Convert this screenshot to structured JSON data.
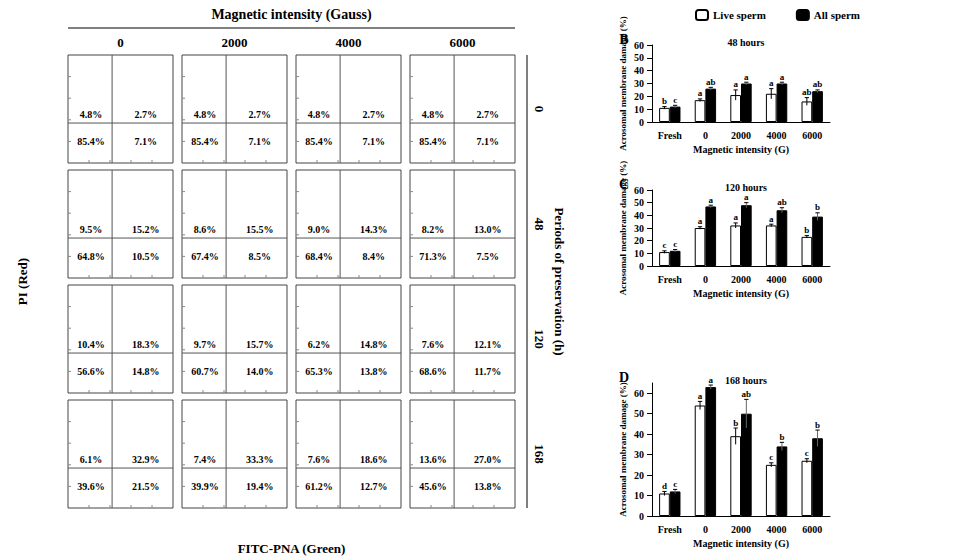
{
  "flow_cytometry": {
    "title": "Magnetic intensity (Gauss)",
    "columns": [
      "0",
      "2000",
      "4000",
      "6000"
    ],
    "row_title": "Periods of preservation (h)",
    "rows": [
      "0",
      "48",
      "120",
      "168"
    ],
    "x_label": "FITC-PNA (Green)",
    "y_label": "PI (Red)",
    "quadrants": [
      [
        {
          "upper_left": "4.8%",
          "upper_right": "2.7%",
          "lower_left": "85.4%",
          "lower_right": "7.1%"
        },
        {
          "upper_left": "4.8%",
          "upper_right": "2.7%",
          "lower_left": "85.4%",
          "lower_right": "7.1%"
        },
        {
          "upper_left": "4.8%",
          "upper_right": "2.7%",
          "lower_left": "85.4%",
          "lower_right": "7.1%"
        },
        {
          "upper_left": "4.8%",
          "upper_right": "2.7%",
          "lower_left": "85.4%",
          "lower_right": "7.1%"
        }
      ],
      [
        {
          "upper_left": "9.5%",
          "upper_right": "15.2%",
          "lower_left": "64.8%",
          "lower_right": "10.5%"
        },
        {
          "upper_left": "8.6%",
          "upper_right": "15.5%",
          "lower_left": "67.4%",
          "lower_right": "8.5%"
        },
        {
          "upper_left": "9.0%",
          "upper_right": "14.3%",
          "lower_left": "68.4%",
          "lower_right": "8.4%"
        },
        {
          "upper_left": "8.2%",
          "upper_right": "13.0%",
          "lower_left": "71.3%",
          "lower_right": "7.5%"
        }
      ],
      [
        {
          "upper_left": "10.4%",
          "upper_right": "18.3%",
          "lower_left": "56.6%",
          "lower_right": "14.8%"
        },
        {
          "upper_left": "9.7%",
          "upper_right": "15.7%",
          "lower_left": "60.7%",
          "lower_right": "14.0%"
        },
        {
          "upper_left": "6.2%",
          "upper_right": "14.8%",
          "lower_left": "65.3%",
          "lower_right": "13.8%"
        },
        {
          "upper_left": "7.6%",
          "upper_right": "12.1%",
          "lower_left": "68.6%",
          "lower_right": "11.7%"
        }
      ],
      [
        {
          "upper_left": "6.1%",
          "upper_right": "32.9%",
          "lower_left": "39.6%",
          "lower_right": "21.5%"
        },
        {
          "upper_left": "7.4%",
          "upper_right": "33.3%",
          "lower_left": "39.9%",
          "lower_right": "19.4%"
        },
        {
          "upper_left": "7.6%",
          "upper_right": "18.6%",
          "lower_left": "61.2%",
          "lower_right": "12.7%"
        },
        {
          "upper_left": "13.6%",
          "upper_right": "27.0%",
          "lower_left": "45.6%",
          "lower_right": "13.8%"
        }
      ]
    ]
  },
  "chart_data": [
    {
      "type": "bar",
      "panel": "B",
      "title": "48 hours",
      "x_label": "Magnetic intensity (G)",
      "y_label": "Acrosomal membrane damage (%)",
      "categories": [
        "Fresh",
        "0",
        "2000",
        "4000",
        "6000"
      ],
      "series": [
        {
          "name": "Live sperm",
          "color": "#ffffff",
          "values": [
            11,
            17,
            21,
            22,
            16
          ],
          "errors": [
            1,
            1,
            4,
            4,
            3
          ],
          "letters": [
            "b",
            "a",
            "a",
            "a",
            "ab"
          ]
        },
        {
          "name": "All sperm",
          "color": "#000000",
          "values": [
            12,
            26,
            30,
            30,
            24
          ],
          "errors": [
            1,
            1,
            1,
            1,
            1
          ],
          "letters": [
            "c",
            "ab",
            "a",
            "a",
            "ab"
          ]
        }
      ],
      "ylim": [
        0,
        60
      ],
      "yticks": [
        0,
        10,
        20,
        30,
        40,
        50,
        60
      ],
      "grid": false,
      "legend": "top"
    },
    {
      "type": "bar",
      "panel": "C",
      "title": "120 hours",
      "x_label": "Magnetic intensity (G)",
      "y_label": "Acrosomal membrane damage (%)",
      "categories": [
        "Fresh",
        "0",
        "2000",
        "4000",
        "6000"
      ],
      "series": [
        {
          "name": "Live sperm",
          "color": "#ffffff",
          "values": [
            11,
            30,
            32,
            32,
            23
          ],
          "errors": [
            1,
            1,
            2,
            1,
            1
          ],
          "letters": [
            "c",
            "a",
            "a",
            "a",
            "b"
          ]
        },
        {
          "name": "All sperm",
          "color": "#000000",
          "values": [
            12,
            47,
            48,
            44,
            39
          ],
          "errors": [
            1,
            1,
            2,
            2,
            3
          ],
          "letters": [
            "c",
            "a",
            "a",
            "ab",
            "b"
          ]
        }
      ],
      "ylim": [
        0,
        60
      ],
      "yticks": [
        0,
        10,
        20,
        30,
        40,
        50,
        60
      ],
      "grid": false
    },
    {
      "type": "bar",
      "panel": "D",
      "title": "168 hours",
      "x_label": "Magnetic intensity (G)",
      "y_label": "Acrosomal membrane damage (%)",
      "categories": [
        "Fresh",
        "0",
        "2000",
        "4000",
        "6000"
      ],
      "series": [
        {
          "name": "Live sperm",
          "color": "#ffffff",
          "values": [
            11,
            54,
            39,
            25,
            27
          ],
          "errors": [
            1,
            2,
            4,
            1,
            1
          ],
          "letters": [
            "d",
            "a",
            "b",
            "c",
            "c"
          ]
        },
        {
          "name": "All sperm",
          "color": "#000000",
          "values": [
            12,
            63,
            50,
            34,
            38
          ],
          "errors": [
            1,
            1,
            7,
            2,
            4
          ],
          "letters": [
            "c",
            "a",
            "ab",
            "b",
            "b"
          ]
        }
      ],
      "ylim": [
        0,
        65
      ],
      "yticks": [
        0,
        10,
        20,
        30,
        40,
        50,
        60
      ],
      "grid": false
    }
  ]
}
